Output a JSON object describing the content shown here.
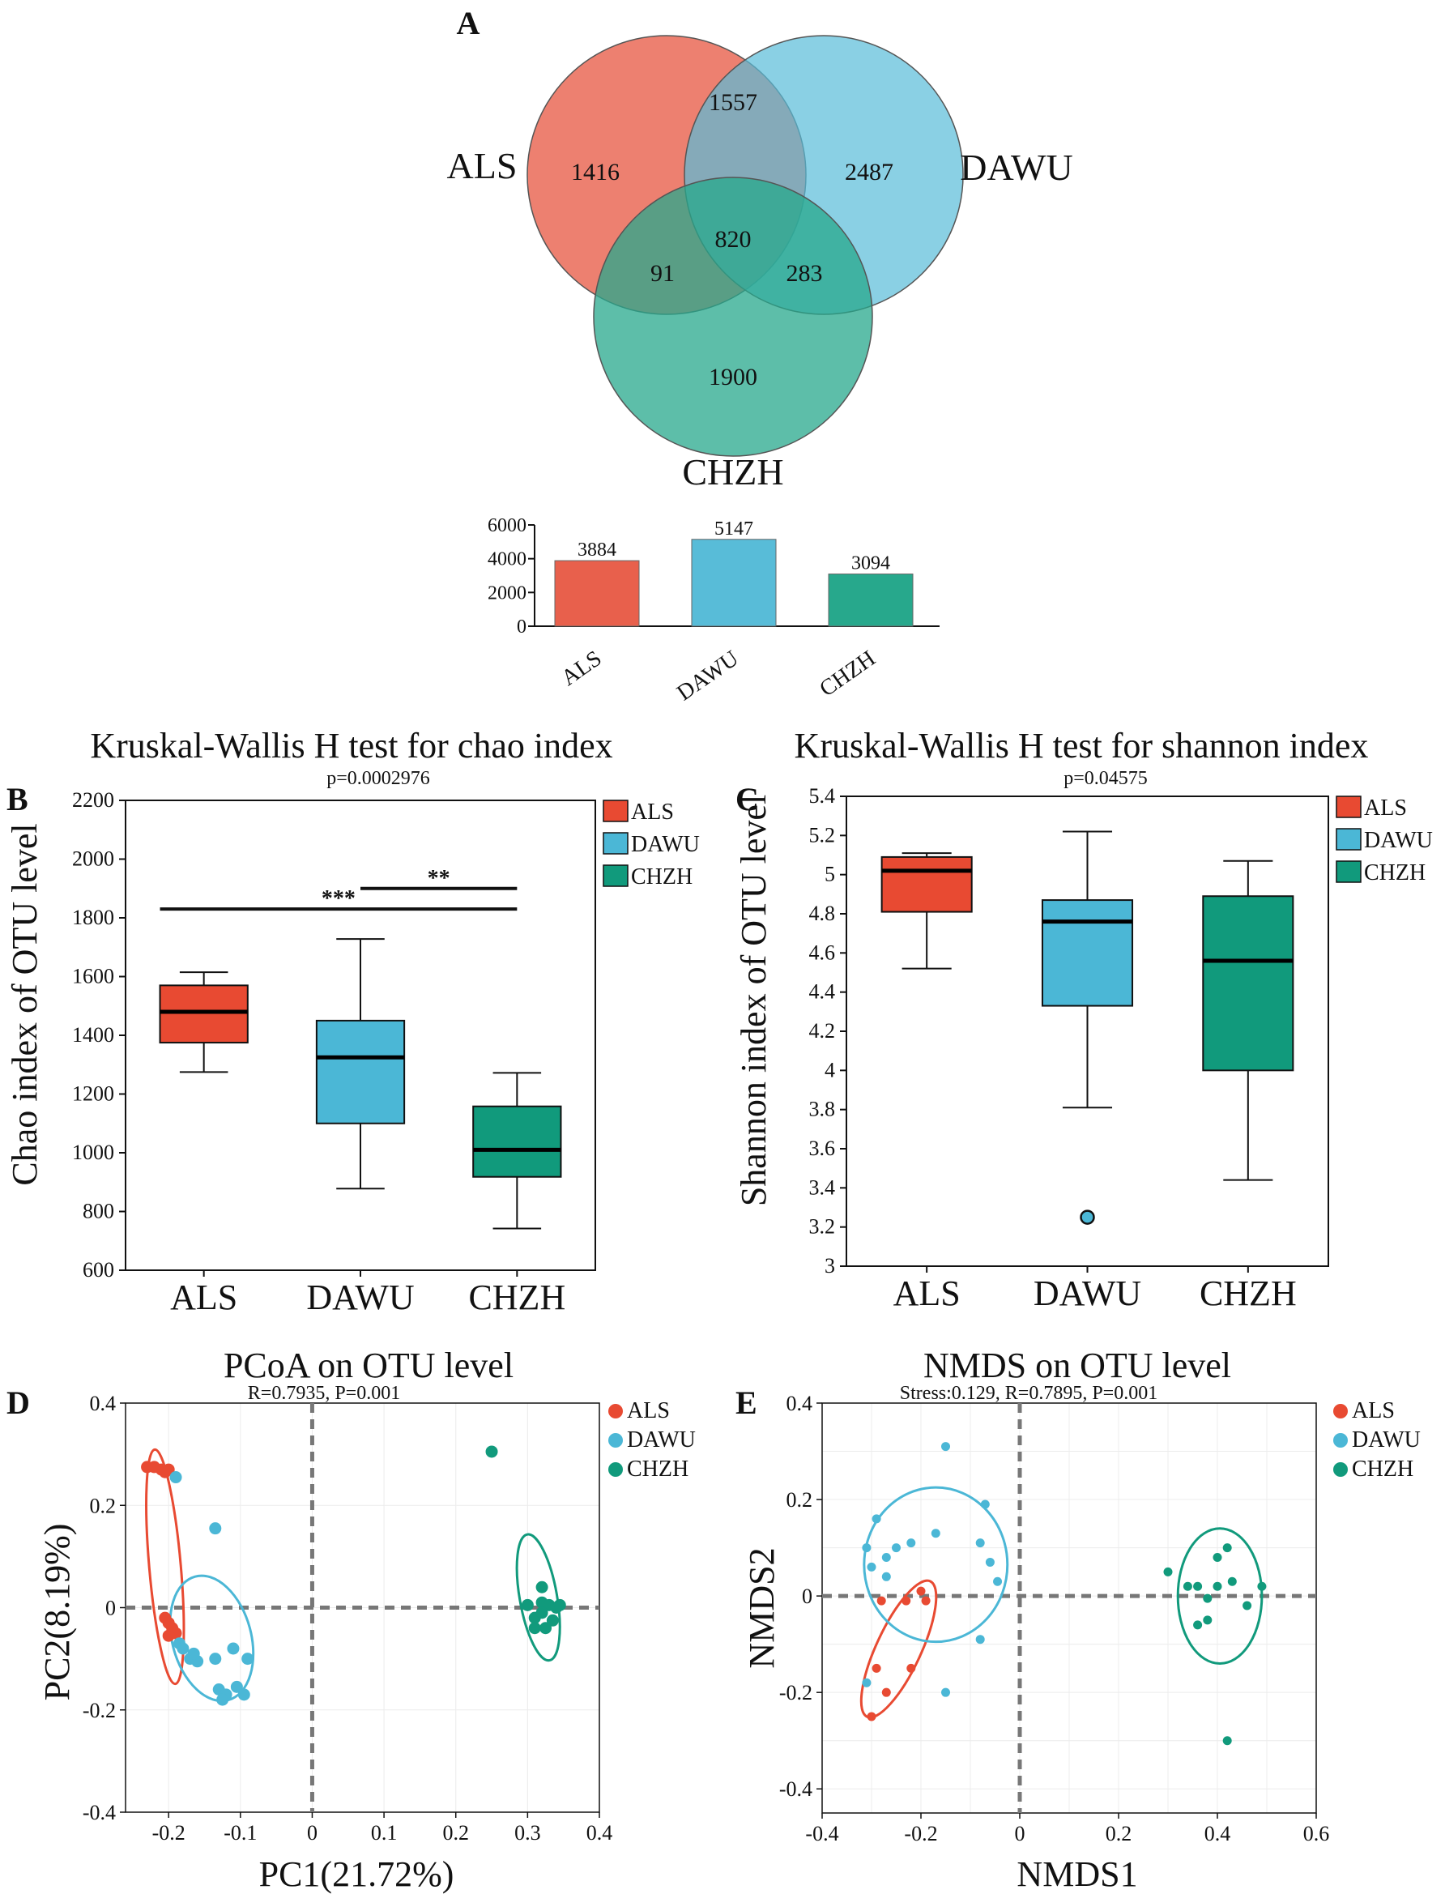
{
  "panel_letters": {
    "a": "A",
    "b": "B",
    "c": "C",
    "d": "D",
    "e": "E"
  },
  "colors": {
    "ALS": "#e8604c",
    "DAWU": "#58bcd8",
    "CHZH": "#27a88c",
    "ALS_box": "#e84a32",
    "DAWU_box": "#4bb7d6",
    "CHZH_box": "#119a7c"
  },
  "chart_data": [
    {
      "id": "venn",
      "type": "venn",
      "sets": [
        "ALS",
        "DAWU",
        "CHZH"
      ],
      "regions": {
        "ALS_only": 1416,
        "DAWU_only": 2487,
        "CHZH_only": 1900,
        "ALS_DAWU": 1557,
        "ALS_CHZH": 91,
        "DAWU_CHZH": 283,
        "all": 820
      }
    },
    {
      "id": "totals",
      "type": "bar",
      "categories": [
        "ALS",
        "DAWU",
        "CHZH"
      ],
      "values": [
        3884,
        5147,
        3094
      ],
      "ylim": [
        0,
        6000
      ],
      "yticks": [
        0,
        2000,
        4000,
        6000
      ]
    },
    {
      "id": "chao",
      "type": "box",
      "title": "Kruskal-Wallis H test for chao index",
      "subtitle": "p=0.0002976",
      "ylabel": "Chao index of OTU level",
      "ylim": [
        600,
        2200
      ],
      "yticks": [
        600,
        800,
        1000,
        1200,
        1400,
        1600,
        1800,
        2000,
        2200
      ],
      "categories": [
        "ALS",
        "DAWU",
        "CHZH"
      ],
      "boxes": [
        {
          "name": "ALS",
          "whisker_low": 1275,
          "q1": 1375,
          "median": 1480,
          "q3": 1570,
          "whisker_high": 1615
        },
        {
          "name": "DAWU",
          "whisker_low": 878,
          "q1": 1100,
          "median": 1325,
          "q3": 1450,
          "whisker_high": 1728
        },
        {
          "name": "CHZH",
          "whisker_low": 742,
          "q1": 918,
          "median": 1010,
          "q3": 1158,
          "whisker_high": 1272
        }
      ],
      "outliers": [],
      "legend": [
        "ALS",
        "DAWU",
        "CHZH"
      ],
      "significance": [
        {
          "from": "ALS",
          "to": "CHZH",
          "y": 1830,
          "label": "***"
        },
        {
          "from": "DAWU",
          "to": "CHZH",
          "y": 1900,
          "label": "**"
        }
      ]
    },
    {
      "id": "shannon",
      "type": "box",
      "title": "Kruskal-Wallis H test for shannon index",
      "subtitle": "p=0.04575",
      "ylabel": "Shannon index of OTU level",
      "ylim": [
        3,
        5.4
      ],
      "yticks": [
        3,
        3.2,
        3.4,
        3.6,
        3.8,
        4,
        4.2,
        4.4,
        4.6,
        4.8,
        5,
        5.2,
        5.4
      ],
      "categories": [
        "ALS",
        "DAWU",
        "CHZH"
      ],
      "boxes": [
        {
          "name": "ALS",
          "whisker_low": 4.52,
          "q1": 4.81,
          "median": 5.02,
          "q3": 5.09,
          "whisker_high": 5.11
        },
        {
          "name": "DAWU",
          "whisker_low": 3.81,
          "q1": 4.33,
          "median": 4.76,
          "q3": 4.87,
          "whisker_high": 5.22
        },
        {
          "name": "CHZH",
          "whisker_low": 3.44,
          "q1": 4.0,
          "median": 4.56,
          "q3": 4.89,
          "whisker_high": 5.07
        }
      ],
      "outliers": [
        {
          "group": "DAWU",
          "value": 3.25
        }
      ],
      "legend": [
        "ALS",
        "DAWU",
        "CHZH"
      ],
      "significance": []
    },
    {
      "id": "pcoa",
      "type": "scatter",
      "title": "PCoA on OTU level",
      "subtitle": "R=0.7935, P=0.001",
      "xlabel": "PC1(21.72%)",
      "ylabel": "PC2(8.19%)",
      "xlim": [
        -0.26,
        0.4
      ],
      "ylim": [
        -0.4,
        0.4
      ],
      "xticks": [
        -0.2,
        -0.1,
        0,
        0.1,
        0.2,
        0.3,
        0.4
      ],
      "yticks": [
        -0.4,
        -0.2,
        0,
        0.2,
        0.4
      ],
      "legend": [
        "ALS",
        "DAWU",
        "CHZH"
      ],
      "series": [
        {
          "name": "ALS",
          "points": [
            [
              -0.23,
              0.275
            ],
            [
              -0.22,
              0.275
            ],
            [
              -0.21,
              0.27
            ],
            [
              -0.2,
              0.27
            ],
            [
              -0.205,
              0.265
            ],
            [
              -0.205,
              -0.02
            ],
            [
              -0.2,
              -0.03
            ],
            [
              -0.195,
              -0.04
            ],
            [
              -0.19,
              -0.05
            ],
            [
              -0.2,
              -0.055
            ]
          ]
        },
        {
          "name": "DAWU",
          "points": [
            [
              -0.19,
              0.255
            ],
            [
              -0.135,
              0.155
            ],
            [
              -0.185,
              -0.07
            ],
            [
              -0.18,
              -0.08
            ],
            [
              -0.17,
              -0.1
            ],
            [
              -0.16,
              -0.105
            ],
            [
              -0.165,
              -0.09
            ],
            [
              -0.135,
              -0.1
            ],
            [
              -0.13,
              -0.16
            ],
            [
              -0.12,
              -0.17
            ],
            [
              -0.11,
              -0.08
            ],
            [
              -0.105,
              -0.155
            ],
            [
              -0.095,
              -0.17
            ],
            [
              -0.09,
              -0.1
            ],
            [
              -0.125,
              -0.18
            ]
          ]
        },
        {
          "name": "CHZH",
          "points": [
            [
              0.25,
              0.305
            ],
            [
              0.3,
              0.005
            ],
            [
              0.31,
              -0.02
            ],
            [
              0.32,
              0.04
            ],
            [
              0.32,
              0.01
            ],
            [
              0.33,
              0.005
            ],
            [
              0.34,
              0.0
            ],
            [
              0.345,
              0.005
            ],
            [
              0.335,
              -0.025
            ],
            [
              0.325,
              -0.04
            ],
            [
              0.31,
              -0.04
            ],
            [
              0.32,
              -0.01
            ]
          ]
        }
      ],
      "ellipses": [
        {
          "name": "ALS",
          "cx": -0.205,
          "cy": 0.08,
          "rx": 0.022,
          "ry": 0.23,
          "angle": -5
        },
        {
          "name": "DAWU",
          "cx": -0.14,
          "cy": -0.06,
          "rx": 0.055,
          "ry": 0.125,
          "angle": -15
        },
        {
          "name": "CHZH",
          "cx": 0.315,
          "cy": 0.02,
          "rx": 0.026,
          "ry": 0.125,
          "angle": -10
        }
      ]
    },
    {
      "id": "nmds",
      "type": "scatter",
      "title": "NMDS on OTU level",
      "subtitle": "Stress:0.129, R=0.7895, P=0.001",
      "xlabel": "NMDS1",
      "ylabel": "NMDS2",
      "xlim": [
        -0.4,
        0.6
      ],
      "ylim": [
        -0.45,
        0.4
      ],
      "xticks": [
        -0.4,
        -0.2,
        0,
        0.2,
        0.4,
        0.6
      ],
      "yticks": [
        -0.4,
        -0.2,
        0,
        0.2,
        0.4
      ],
      "legend": [
        "ALS",
        "DAWU",
        "CHZH"
      ],
      "series": [
        {
          "name": "ALS",
          "points": [
            [
              -0.28,
              -0.01
            ],
            [
              -0.23,
              -0.01
            ],
            [
              -0.2,
              0.01
            ],
            [
              -0.19,
              -0.01
            ],
            [
              -0.29,
              -0.15
            ],
            [
              -0.27,
              -0.2
            ],
            [
              -0.3,
              -0.25
            ],
            [
              -0.22,
              -0.15
            ]
          ]
        },
        {
          "name": "DAWU",
          "points": [
            [
              -0.15,
              0.31
            ],
            [
              -0.29,
              0.16
            ],
            [
              -0.31,
              0.1
            ],
            [
              -0.3,
              0.06
            ],
            [
              -0.27,
              0.08
            ],
            [
              -0.27,
              0.04
            ],
            [
              -0.25,
              0.1
            ],
            [
              -0.22,
              0.11
            ],
            [
              -0.17,
              0.13
            ],
            [
              -0.07,
              0.19
            ],
            [
              -0.08,
              0.11
            ],
            [
              -0.06,
              0.07
            ],
            [
              -0.045,
              0.03
            ],
            [
              -0.08,
              -0.09
            ],
            [
              -0.31,
              -0.18
            ],
            [
              -0.15,
              -0.2
            ]
          ]
        },
        {
          "name": "CHZH",
          "points": [
            [
              0.3,
              0.05
            ],
            [
              0.34,
              0.02
            ],
            [
              0.36,
              0.02
            ],
            [
              0.38,
              -0.005
            ],
            [
              0.4,
              0.08
            ],
            [
              0.42,
              0.1
            ],
            [
              0.4,
              0.02
            ],
            [
              0.43,
              0.03
            ],
            [
              0.46,
              -0.02
            ],
            [
              0.49,
              0.02
            ],
            [
              0.38,
              -0.05
            ],
            [
              0.36,
              -0.06
            ],
            [
              0.42,
              -0.3
            ]
          ]
        }
      ],
      "ellipses": [
        {
          "name": "ALS",
          "cx": -0.245,
          "cy": -0.11,
          "rx": 0.045,
          "ry": 0.155,
          "angle": 25
        },
        {
          "name": "DAWU",
          "cx": -0.17,
          "cy": 0.065,
          "rx": 0.145,
          "ry": 0.16,
          "angle": 0
        },
        {
          "name": "CHZH",
          "cx": 0.405,
          "cy": 0.0,
          "rx": 0.085,
          "ry": 0.14,
          "angle": 0
        }
      ]
    }
  ]
}
